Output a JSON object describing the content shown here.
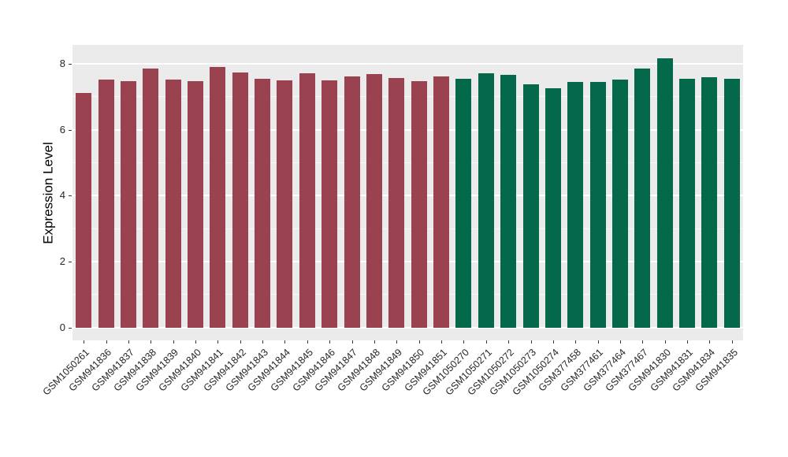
{
  "chart_data": {
    "type": "bar",
    "title": "",
    "xlabel": "",
    "ylabel": "Expression Level",
    "ylim": [
      0,
      8.58
    ],
    "yticks": [
      0,
      2,
      4,
      6,
      8
    ],
    "minor_gridlines": [
      1,
      3,
      5,
      7
    ],
    "legend": "none",
    "panel_background": "#EBEBEB",
    "gridline_color": "#FFFFFF",
    "categories": [
      "GSM1050261",
      "GSM941836",
      "GSM941837",
      "GSM941838",
      "GSM941839",
      "GSM941840",
      "GSM941841",
      "GSM941842",
      "GSM941843",
      "GSM941844",
      "GSM941845",
      "GSM941846",
      "GSM941847",
      "GSM941848",
      "GSM941849",
      "GSM941850",
      "GSM941851",
      "GSM1050270",
      "GSM1050271",
      "GSM1050272",
      "GSM1050273",
      "GSM1050274",
      "GSM377458",
      "GSM377461",
      "GSM377464",
      "GSM377467",
      "GSM941830",
      "GSM941831",
      "GSM941834",
      "GSM941835"
    ],
    "values": [
      7.12,
      7.52,
      7.48,
      7.87,
      7.52,
      7.47,
      7.9,
      7.73,
      7.56,
      7.51,
      7.72,
      7.49,
      7.62,
      7.7,
      7.57,
      7.48,
      7.63,
      7.55,
      7.72,
      7.67,
      7.38,
      7.25,
      7.45,
      7.45,
      7.52,
      7.86,
      8.17,
      7.55,
      7.6,
      7.55
    ],
    "bar_groups": [
      {
        "color": "#9A4250",
        "count": 17
      },
      {
        "color": "#04684A",
        "count": 13
      }
    ]
  }
}
